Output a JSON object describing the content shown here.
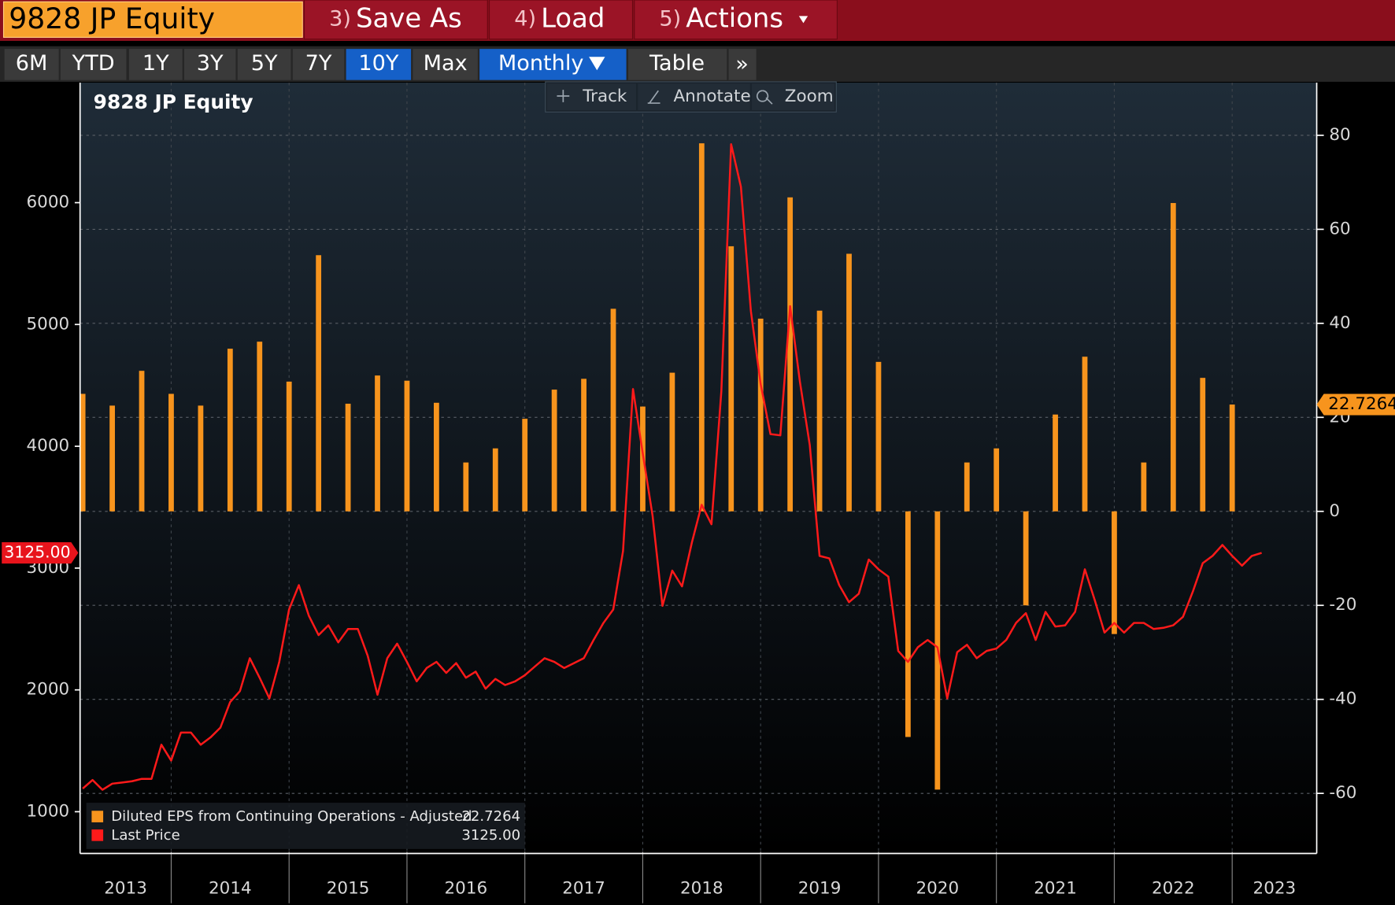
{
  "toolbar": {
    "ticker": "9828 JP Equity",
    "buttons": [
      {
        "num": "3)",
        "label": "Save As"
      },
      {
        "num": "4)",
        "label": "Load"
      },
      {
        "num": "5)",
        "label": "Actions"
      }
    ],
    "ranges": [
      "6M",
      "YTD",
      "1Y",
      "3Y",
      "5Y",
      "7Y",
      "10Y",
      "Max"
    ],
    "period": "Monthly",
    "table": "Table",
    "more": "»",
    "tools": [
      "Track",
      "Annotate",
      "Zoom"
    ]
  },
  "chart_data": {
    "type": "bar-line",
    "title": "9828 JP Equity",
    "xlim": [
      2013.227,
      2023.717
    ],
    "xticks": [
      2013,
      2014,
      2015,
      2016,
      2017,
      2018,
      2019,
      2020,
      2021,
      2022,
      2023
    ],
    "ylim": [
      672,
      6985
    ],
    "yticks": [
      1000,
      2000,
      3000,
      4000,
      5000,
      6000
    ],
    "y2lim": [
      -72.4,
      91.2
    ],
    "y2ticks": [
      -60,
      -40,
      -20,
      0,
      20,
      40,
      60,
      80
    ],
    "grid": true,
    "series": [
      {
        "name": "Diluted EPS from Continuing Operations - Adjusted",
        "type": "bar",
        "axis": "y2",
        "color": "#f7941d",
        "value_label": "22.7264",
        "x": [
          2013.25,
          2013.5,
          2013.75,
          2014,
          2014.25,
          2014.5,
          2014.75,
          2015,
          2015.25,
          2015.5,
          2015.75,
          2016,
          2016.25,
          2016.5,
          2016.75,
          2017,
          2017.25,
          2017.5,
          2017.75,
          2018,
          2018.25,
          2018.5,
          2018.75,
          2019,
          2019.25,
          2019.5,
          2019.75,
          2020,
          2020.25,
          2020.5,
          2020.75,
          2021,
          2021.25,
          2021.5,
          2021.75,
          2022,
          2022.25,
          2022.5,
          2022.75,
          2023
        ],
        "values": [
          25,
          22.5,
          29.9,
          25,
          22.5,
          34.6,
          36.1,
          27.6,
          54.5,
          22.9,
          28.9,
          27.8,
          23.1,
          10.4,
          13.4,
          19.7,
          25.9,
          28.2,
          43.1,
          22.3,
          29.5,
          78.3,
          56.4,
          41,
          66.8,
          42.7,
          54.8,
          31.8,
          -48,
          -59.2,
          10.4,
          13.4,
          -20,
          20.6,
          32.9,
          -26.1,
          10.4,
          65.6,
          28.4,
          22.7264
        ]
      },
      {
        "name": "Last Price",
        "type": "line",
        "color": "#ff1a1a",
        "value_label": "3125.00",
        "x": [
          2013.25,
          2013.333,
          2013.417,
          2013.5,
          2013.583,
          2013.667,
          2013.75,
          2013.833,
          2013.917,
          2014,
          2014.083,
          2014.167,
          2014.25,
          2014.333,
          2014.417,
          2014.5,
          2014.583,
          2014.667,
          2014.75,
          2014.833,
          2014.917,
          2015,
          2015.083,
          2015.167,
          2015.25,
          2015.333,
          2015.417,
          2015.5,
          2015.583,
          2015.667,
          2015.75,
          2015.833,
          2015.917,
          2016,
          2016.083,
          2016.167,
          2016.25,
          2016.333,
          2016.417,
          2016.5,
          2016.583,
          2016.667,
          2016.75,
          2016.833,
          2016.917,
          2017,
          2017.083,
          2017.167,
          2017.25,
          2017.333,
          2017.417,
          2017.5,
          2017.583,
          2017.667,
          2017.75,
          2017.833,
          2017.917,
          2018,
          2018.083,
          2018.167,
          2018.25,
          2018.333,
          2018.417,
          2018.5,
          2018.583,
          2018.667,
          2018.75,
          2018.833,
          2018.917,
          2019,
          2019.083,
          2019.167,
          2019.25,
          2019.333,
          2019.417,
          2019.5,
          2019.583,
          2019.667,
          2019.75,
          2019.833,
          2019.917,
          2020,
          2020.083,
          2020.167,
          2020.25,
          2020.333,
          2020.417,
          2020.5,
          2020.583,
          2020.667,
          2020.75,
          2020.833,
          2020.917,
          2021,
          2021.083,
          2021.167,
          2021.25,
          2021.333,
          2021.417,
          2021.5,
          2021.583,
          2021.667,
          2021.75,
          2021.833,
          2021.917,
          2022,
          2022.083,
          2022.167,
          2022.25,
          2022.333,
          2022.417,
          2022.5,
          2022.583,
          2022.667,
          2022.75,
          2022.833,
          2022.917,
          2023,
          2023.083,
          2023.167,
          2023.25
        ],
        "values": [
          1190,
          1260,
          1180,
          1230,
          1240,
          1250,
          1270,
          1270,
          1550,
          1420,
          1650,
          1650,
          1550,
          1610,
          1690,
          1900,
          1990,
          2260,
          2100,
          1930,
          2230,
          2660,
          2860,
          2610,
          2450,
          2530,
          2390,
          2500,
          2500,
          2280,
          1960,
          2260,
          2380,
          2230,
          2070,
          2180,
          2230,
          2140,
          2220,
          2100,
          2150,
          2010,
          2090,
          2040,
          2070,
          2120,
          2190,
          2260,
          2230,
          2180,
          2220,
          2260,
          2410,
          2550,
          2660,
          3140,
          4470,
          3940,
          3430,
          2690,
          2980,
          2850,
          3210,
          3520,
          3360,
          4450,
          6480,
          6130,
          5110,
          4510,
          4100,
          4090,
          5150,
          4530,
          4010,
          3100,
          3080,
          2860,
          2720,
          2790,
          3070,
          2990,
          2930,
          2320,
          2230,
          2350,
          2410,
          2350,
          1930,
          2310,
          2370,
          2260,
          2320,
          2340,
          2410,
          2550,
          2630,
          2410,
          2640,
          2520,
          2530,
          2640,
          2990,
          2740,
          2470,
          2550,
          2470,
          2550,
          2550,
          2500,
          2510,
          2530,
          2600,
          2810,
          3040,
          3100,
          3190,
          3100,
          3020,
          3100,
          3125
        ]
      }
    ]
  }
}
